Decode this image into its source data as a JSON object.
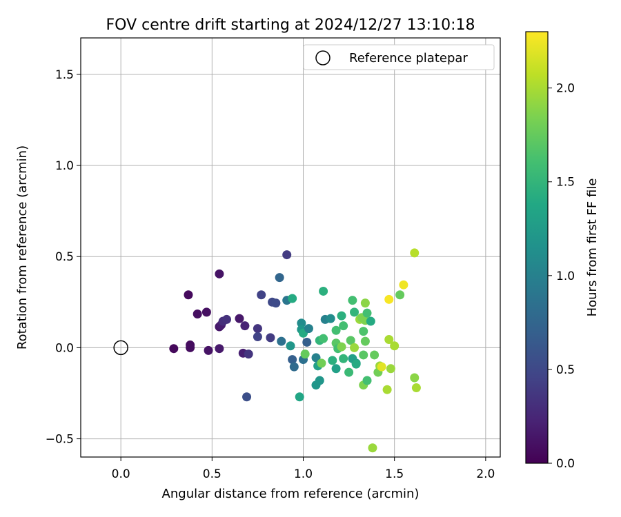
{
  "chart_data": {
    "type": "scatter",
    "title": "FOV centre drift starting at 2024/12/27 13:10:18",
    "xlabel": "Angular distance from reference (arcmin)",
    "ylabel": "Rotation from reference (arcmin)",
    "xlim": [
      -0.22,
      2.08
    ],
    "ylim": [
      -0.6,
      1.7
    ],
    "xticks": [
      0.0,
      0.5,
      1.0,
      1.5,
      2.0
    ],
    "xtick_labels": [
      "0.0",
      "0.5",
      "1.0",
      "1.5",
      "2.0"
    ],
    "yticks": [
      -0.5,
      0.0,
      0.5,
      1.0,
      1.5
    ],
    "ytick_labels": [
      "−0.5",
      "0.0",
      "0.5",
      "1.0",
      "1.5"
    ],
    "grid": true,
    "legend": {
      "position": "top-right",
      "entries": [
        "Reference platepar"
      ]
    },
    "reference_point": {
      "x": 0.0,
      "y": 0.0,
      "label": "Reference platepar"
    },
    "colorbar": {
      "label": "Hours from first FF file",
      "range": [
        0.0,
        2.3
      ],
      "colormap": "viridis",
      "ticks": [
        0.0,
        0.5,
        1.0,
        1.5,
        2.0
      ],
      "tick_labels": [
        "0.0",
        "0.5",
        "1.0",
        "1.5",
        "2.0"
      ]
    },
    "points": [
      {
        "x": 0.29,
        "y": -0.005,
        "c": 0.05
      },
      {
        "x": 0.38,
        "y": 0.015,
        "c": 0.07
      },
      {
        "x": 0.38,
        "y": 0.0,
        "c": 0.08
      },
      {
        "x": 0.37,
        "y": 0.29,
        "c": 0.06
      },
      {
        "x": 0.42,
        "y": 0.185,
        "c": 0.09
      },
      {
        "x": 0.47,
        "y": 0.195,
        "c": 0.1
      },
      {
        "x": 0.48,
        "y": -0.015,
        "c": 0.12
      },
      {
        "x": 0.54,
        "y": 0.405,
        "c": 0.12
      },
      {
        "x": 0.54,
        "y": 0.115,
        "c": 0.14
      },
      {
        "x": 0.54,
        "y": -0.005,
        "c": 0.16
      },
      {
        "x": 0.55,
        "y": 0.125,
        "c": 0.18
      },
      {
        "x": 0.56,
        "y": 0.145,
        "c": 0.3
      },
      {
        "x": 0.58,
        "y": 0.155,
        "c": 0.32
      },
      {
        "x": 0.65,
        "y": 0.16,
        "c": 0.15
      },
      {
        "x": 0.67,
        "y": -0.03,
        "c": 0.2
      },
      {
        "x": 0.68,
        "y": 0.12,
        "c": 0.22
      },
      {
        "x": 0.7,
        "y": -0.035,
        "c": 0.35
      },
      {
        "x": 0.69,
        "y": -0.27,
        "c": 0.55
      },
      {
        "x": 0.75,
        "y": 0.105,
        "c": 0.35
      },
      {
        "x": 0.75,
        "y": 0.06,
        "c": 0.45
      },
      {
        "x": 0.77,
        "y": 0.29,
        "c": 0.45
      },
      {
        "x": 0.82,
        "y": 0.055,
        "c": 0.4
      },
      {
        "x": 0.83,
        "y": 0.25,
        "c": 0.5
      },
      {
        "x": 0.85,
        "y": 0.245,
        "c": 0.52
      },
      {
        "x": 0.87,
        "y": 0.385,
        "c": 0.75
      },
      {
        "x": 0.88,
        "y": 0.035,
        "c": 0.85
      },
      {
        "x": 0.91,
        "y": 0.51,
        "c": 0.4
      },
      {
        "x": 0.91,
        "y": 0.26,
        "c": 0.9
      },
      {
        "x": 0.94,
        "y": 0.27,
        "c": 1.4
      },
      {
        "x": 0.93,
        "y": 0.01,
        "c": 1.2
      },
      {
        "x": 0.94,
        "y": -0.065,
        "c": 0.7
      },
      {
        "x": 0.95,
        "y": -0.105,
        "c": 0.8
      },
      {
        "x": 0.98,
        "y": -0.27,
        "c": 1.35
      },
      {
        "x": 0.99,
        "y": 0.135,
        "c": 1.1
      },
      {
        "x": 0.99,
        "y": 0.1,
        "c": 1.2
      },
      {
        "x": 1.0,
        "y": -0.065,
        "c": 0.85
      },
      {
        "x": 1.0,
        "y": 0.08,
        "c": 1.4
      },
      {
        "x": 1.01,
        "y": -0.035,
        "c": 1.75
      },
      {
        "x": 1.02,
        "y": 0.03,
        "c": 0.7
      },
      {
        "x": 1.03,
        "y": 0.105,
        "c": 1.0
      },
      {
        "x": 1.07,
        "y": -0.055,
        "c": 1.0
      },
      {
        "x": 1.07,
        "y": -0.205,
        "c": 1.2
      },
      {
        "x": 1.08,
        "y": -0.1,
        "c": 1.3
      },
      {
        "x": 1.09,
        "y": -0.18,
        "c": 1.2
      },
      {
        "x": 1.09,
        "y": 0.04,
        "c": 1.5
      },
      {
        "x": 1.1,
        "y": -0.085,
        "c": 1.8
      },
      {
        "x": 1.11,
        "y": 0.05,
        "c": 1.6
      },
      {
        "x": 1.11,
        "y": 0.31,
        "c": 1.45
      },
      {
        "x": 1.12,
        "y": 0.155,
        "c": 1.0
      },
      {
        "x": 1.15,
        "y": 0.16,
        "c": 1.1
      },
      {
        "x": 1.16,
        "y": -0.07,
        "c": 1.45
      },
      {
        "x": 1.18,
        "y": 0.095,
        "c": 1.6
      },
      {
        "x": 1.18,
        "y": 0.025,
        "c": 1.7
      },
      {
        "x": 1.18,
        "y": -0.115,
        "c": 1.3
      },
      {
        "x": 1.19,
        "y": -0.005,
        "c": 1.6
      },
      {
        "x": 1.21,
        "y": 0.175,
        "c": 1.45
      },
      {
        "x": 1.21,
        "y": 0.005,
        "c": 1.85
      },
      {
        "x": 1.22,
        "y": -0.06,
        "c": 1.5
      },
      {
        "x": 1.22,
        "y": 0.12,
        "c": 1.6
      },
      {
        "x": 1.25,
        "y": -0.135,
        "c": 1.55
      },
      {
        "x": 1.26,
        "y": 0.04,
        "c": 1.7
      },
      {
        "x": 1.27,
        "y": -0.06,
        "c": 1.3
      },
      {
        "x": 1.27,
        "y": 0.26,
        "c": 1.6
      },
      {
        "x": 1.28,
        "y": 0.195,
        "c": 1.5
      },
      {
        "x": 1.28,
        "y": 0.0,
        "c": 1.95
      },
      {
        "x": 1.29,
        "y": -0.085,
        "c": 1.25
      },
      {
        "x": 1.29,
        "y": -0.09,
        "c": 1.4
      },
      {
        "x": 1.31,
        "y": 0.155,
        "c": 1.95
      },
      {
        "x": 1.32,
        "y": 0.165,
        "c": 1.85
      },
      {
        "x": 1.33,
        "y": 0.09,
        "c": 1.65
      },
      {
        "x": 1.33,
        "y": -0.04,
        "c": 1.7
      },
      {
        "x": 1.33,
        "y": -0.205,
        "c": 1.85
      },
      {
        "x": 1.34,
        "y": 0.245,
        "c": 1.9
      },
      {
        "x": 1.34,
        "y": 0.035,
        "c": 1.75
      },
      {
        "x": 1.34,
        "y": 0.15,
        "c": 1.85
      },
      {
        "x": 1.35,
        "y": 0.19,
        "c": 1.6
      },
      {
        "x": 1.35,
        "y": -0.18,
        "c": 1.6
      },
      {
        "x": 1.37,
        "y": 0.145,
        "c": 1.4
      },
      {
        "x": 1.38,
        "y": -0.55,
        "c": 1.95
      },
      {
        "x": 1.39,
        "y": -0.04,
        "c": 1.75
      },
      {
        "x": 1.41,
        "y": -0.135,
        "c": 1.8
      },
      {
        "x": 1.42,
        "y": -0.1,
        "c": 1.95
      },
      {
        "x": 1.43,
        "y": -0.105,
        "c": 2.2
      },
      {
        "x": 1.46,
        "y": -0.23,
        "c": 2.0
      },
      {
        "x": 1.47,
        "y": 0.265,
        "c": 2.28
      },
      {
        "x": 1.47,
        "y": 0.045,
        "c": 2.0
      },
      {
        "x": 1.48,
        "y": -0.115,
        "c": 1.95
      },
      {
        "x": 1.5,
        "y": 0.01,
        "c": 2.0
      },
      {
        "x": 1.53,
        "y": 0.29,
        "c": 1.75
      },
      {
        "x": 1.55,
        "y": 0.345,
        "c": 2.25
      },
      {
        "x": 1.61,
        "y": 0.52,
        "c": 2.05
      },
      {
        "x": 1.61,
        "y": -0.165,
        "c": 1.9
      },
      {
        "x": 1.62,
        "y": -0.22,
        "c": 2.0
      }
    ]
  }
}
